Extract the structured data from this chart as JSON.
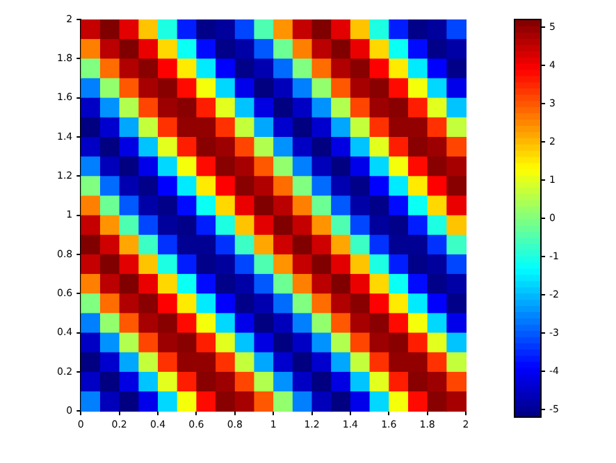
{
  "chart_data": {
    "type": "heatmap",
    "xlim": [
      0,
      2
    ],
    "ylim": [
      0,
      2
    ],
    "xticks": [
      0,
      0.2,
      0.4,
      0.6,
      0.8,
      1,
      1.2,
      1.4,
      1.6,
      1.8,
      2
    ],
    "yticks": [
      0,
      0.2,
      0.4,
      0.6,
      0.8,
      1,
      1.2,
      1.4,
      1.6,
      1.8,
      2
    ],
    "clim": [
      -5.2,
      5.2
    ],
    "cticks": [
      -5,
      -4,
      -3,
      -2,
      -1,
      0,
      1,
      2,
      3,
      4,
      5
    ],
    "cells": [
      [
        4.5,
        5.2,
        4.2,
        1.9,
        -1.0,
        -3.6,
        -5.1,
        -4.9,
        -3.2,
        -0.5,
        2.4,
        4.5,
        5.2,
        4.2,
        1.9,
        -1.0,
        -3.6,
        -5.1,
        -4.9,
        -3.2
      ],
      [
        2.6,
        4.6,
        5.2,
        4.1,
        1.7,
        -1.2,
        -3.8,
        -5.1,
        -4.8,
        -3.0,
        -0.2,
        2.6,
        4.6,
        5.2,
        4.1,
        1.7,
        -1.2,
        -3.8,
        -5.1,
        -4.8
      ],
      [
        0,
        2.8,
        4.7,
        5.1,
        3.9,
        1.5,
        -1.5,
        -3.9,
        -5.1,
        -4.7,
        -2.8,
        0,
        2.8,
        4.7,
        5.1,
        3.9,
        1.5,
        -1.5,
        -3.9,
        -5.1
      ],
      [
        -2.6,
        0.2,
        3.0,
        4.8,
        5.1,
        3.8,
        1.2,
        -1.7,
        -4.1,
        -5.2,
        -4.6,
        -2.6,
        0.2,
        3.0,
        4.8,
        5.1,
        3.8,
        1.2,
        -1.7,
        -4.1
      ],
      [
        -4.5,
        -2.4,
        0.5,
        3.2,
        4.9,
        5.1,
        3.6,
        1.0,
        -1.9,
        -4.2,
        -5.2,
        -4.5,
        -2.4,
        0.5,
        3.2,
        4.9,
        5.1,
        3.6,
        1.0,
        -1.9
      ],
      [
        -5.2,
        -4.4,
        -2.2,
        0.7,
        3.4,
        5.0,
        5.0,
        3.4,
        0.7,
        -2.2,
        -4.4,
        -5.2,
        -4.4,
        -2.2,
        0.7,
        3.4,
        5.0,
        5.0,
        3.4,
        0.7
      ],
      [
        -4.5,
        -5.2,
        -4.2,
        -1.9,
        1.0,
        3.6,
        5.1,
        4.9,
        3.2,
        0.5,
        -2.4,
        -4.5,
        -5.2,
        -4.2,
        -1.9,
        1.0,
        3.6,
        5.1,
        4.9,
        3.2
      ],
      [
        -2.6,
        -4.6,
        -5.2,
        -4.1,
        -1.7,
        1.2,
        3.8,
        5.1,
        4.8,
        3.0,
        0.2,
        -2.6,
        -4.6,
        -5.2,
        -4.1,
        -1.7,
        1.2,
        3.8,
        5.1,
        4.8
      ],
      [
        0,
        -2.8,
        -4.7,
        -5.1,
        -3.9,
        -1.5,
        1.5,
        3.9,
        5.1,
        4.7,
        2.8,
        0,
        -2.8,
        -4.7,
        -5.1,
        -3.9,
        -1.5,
        1.5,
        3.9,
        5.1
      ],
      [
        2.6,
        -0.2,
        -3.0,
        -4.8,
        -5.1,
        -3.8,
        -1.2,
        1.7,
        4.1,
        5.2,
        4.6,
        2.6,
        -0.2,
        -3.0,
        -4.8,
        -5.1,
        -3.8,
        -1.2,
        1.7,
        4.1
      ],
      [
        4.5,
        2.4,
        -0.5,
        -3.2,
        -4.9,
        -5.1,
        -3.6,
        -1.0,
        1.9,
        4.2,
        5.2,
        4.5,
        2.4,
        -0.5,
        -3.2,
        -4.9,
        -5.1,
        -3.6,
        -1.0,
        1.9
      ],
      [
        5.2,
        4.4,
        2.2,
        -0.7,
        -3.4,
        -5.0,
        -5.0,
        -3.4,
        -0.7,
        2.2,
        4.4,
        5.2,
        4.4,
        2.2,
        -0.7,
        -3.4,
        -5.0,
        -5.0,
        -3.4,
        -0.7
      ],
      [
        4.5,
        5.2,
        4.2,
        1.9,
        -1.0,
        -3.6,
        -5.1,
        -4.9,
        -3.2,
        -0.5,
        2.4,
        4.5,
        5.2,
        4.2,
        1.9,
        -1.0,
        -3.6,
        -5.1,
        -4.9,
        -3.2
      ],
      [
        2.6,
        4.6,
        5.2,
        4.1,
        1.7,
        -1.2,
        -3.8,
        -5.1,
        -4.8,
        -3.0,
        -0.2,
        2.6,
        4.6,
        5.2,
        4.1,
        1.7,
        -1.2,
        -3.8,
        -5.1,
        -4.8
      ],
      [
        0,
        2.8,
        4.7,
        5.1,
        3.9,
        1.5,
        -1.5,
        -3.9,
        -5.1,
        -4.7,
        -2.8,
        0,
        2.8,
        4.7,
        5.1,
        3.9,
        1.5,
        -1.5,
        -3.9,
        -5.1
      ],
      [
        -2.6,
        0.2,
        3.0,
        4.8,
        5.1,
        3.8,
        1.2,
        -1.7,
        -4.1,
        -5.2,
        -4.6,
        -2.6,
        0.2,
        3.0,
        4.8,
        5.1,
        3.8,
        1.2,
        -1.7,
        -4.1
      ],
      [
        -4.5,
        -2.4,
        0.5,
        3.2,
        4.9,
        5.1,
        3.6,
        1.0,
        -1.9,
        -4.2,
        -5.2,
        -4.5,
        -2.4,
        0.5,
        3.2,
        4.9,
        5.1,
        3.6,
        1.0,
        -1.9
      ],
      [
        -5.2,
        -4.4,
        -2.2,
        0.7,
        3.4,
        5.0,
        5.0,
        3.4,
        0.7,
        -2.2,
        -4.4,
        -5.2,
        -4.4,
        -2.2,
        0.7,
        3.4,
        5.0,
        5.0,
        3.4,
        0.7
      ],
      [
        -4.5,
        -5.2,
        -4.2,
        -1.9,
        1.0,
        3.6,
        5.1,
        4.9,
        3.2,
        0.5,
        -2.4,
        -4.5,
        -5.2,
        -4.2,
        -1.9,
        1.0,
        3.6,
        5.1,
        4.9,
        3.2
      ],
      [
        -2.6,
        -4.6,
        -5.2,
        -4.1,
        -1.7,
        1.2,
        3.8,
        5.1,
        4.8,
        3.0,
        0.2,
        -2.6,
        -4.6,
        -5.2,
        -4.1,
        -1.7,
        1.2,
        3.8,
        5.1,
        4.8
      ]
    ]
  }
}
